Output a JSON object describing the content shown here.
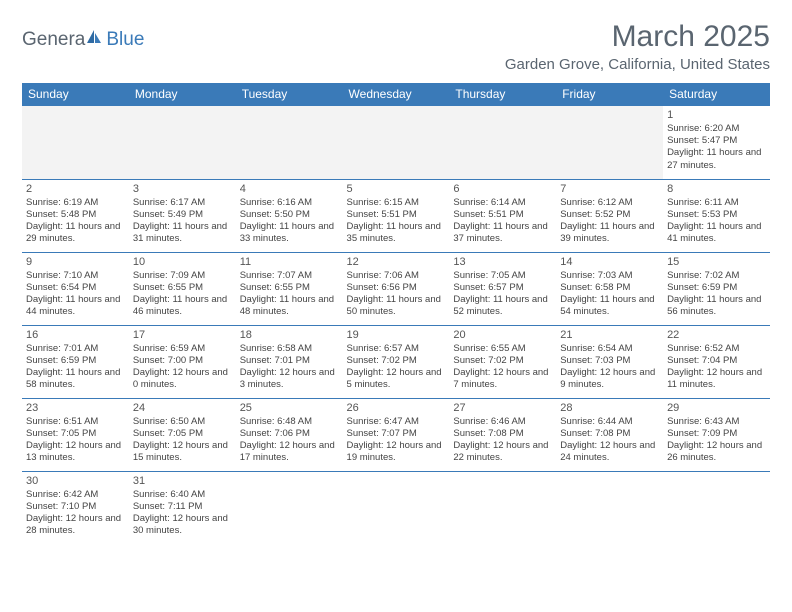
{
  "logo": {
    "part1": "Genera",
    "part2": "Blue"
  },
  "title": "March 2025",
  "location": "Garden Grove, California, United States",
  "colors": {
    "header_bg": "#3a7ab8",
    "header_text": "#ffffff",
    "text": "#444444",
    "title_text": "#5a6570",
    "logo_gray": "#5a6570",
    "logo_blue": "#3a7ab8",
    "cell_border": "#3a7ab8",
    "empty_bg": "#f3f3f3",
    "page_bg": "#ffffff"
  },
  "typography": {
    "title_fontsize": 30,
    "location_fontsize": 15,
    "dayheader_fontsize": 12,
    "daynum_fontsize": 11,
    "detail_fontsize": 9.5
  },
  "day_headers": [
    "Sunday",
    "Monday",
    "Tuesday",
    "Wednesday",
    "Thursday",
    "Friday",
    "Saturday"
  ],
  "weeks": [
    [
      null,
      null,
      null,
      null,
      null,
      null,
      {
        "n": "1",
        "sr": "Sunrise: 6:20 AM",
        "ss": "Sunset: 5:47 PM",
        "dl": "Daylight: 11 hours and 27 minutes."
      }
    ],
    [
      {
        "n": "2",
        "sr": "Sunrise: 6:19 AM",
        "ss": "Sunset: 5:48 PM",
        "dl": "Daylight: 11 hours and 29 minutes."
      },
      {
        "n": "3",
        "sr": "Sunrise: 6:17 AM",
        "ss": "Sunset: 5:49 PM",
        "dl": "Daylight: 11 hours and 31 minutes."
      },
      {
        "n": "4",
        "sr": "Sunrise: 6:16 AM",
        "ss": "Sunset: 5:50 PM",
        "dl": "Daylight: 11 hours and 33 minutes."
      },
      {
        "n": "5",
        "sr": "Sunrise: 6:15 AM",
        "ss": "Sunset: 5:51 PM",
        "dl": "Daylight: 11 hours and 35 minutes."
      },
      {
        "n": "6",
        "sr": "Sunrise: 6:14 AM",
        "ss": "Sunset: 5:51 PM",
        "dl": "Daylight: 11 hours and 37 minutes."
      },
      {
        "n": "7",
        "sr": "Sunrise: 6:12 AM",
        "ss": "Sunset: 5:52 PM",
        "dl": "Daylight: 11 hours and 39 minutes."
      },
      {
        "n": "8",
        "sr": "Sunrise: 6:11 AM",
        "ss": "Sunset: 5:53 PM",
        "dl": "Daylight: 11 hours and 41 minutes."
      }
    ],
    [
      {
        "n": "9",
        "sr": "Sunrise: 7:10 AM",
        "ss": "Sunset: 6:54 PM",
        "dl": "Daylight: 11 hours and 44 minutes."
      },
      {
        "n": "10",
        "sr": "Sunrise: 7:09 AM",
        "ss": "Sunset: 6:55 PM",
        "dl": "Daylight: 11 hours and 46 minutes."
      },
      {
        "n": "11",
        "sr": "Sunrise: 7:07 AM",
        "ss": "Sunset: 6:55 PM",
        "dl": "Daylight: 11 hours and 48 minutes."
      },
      {
        "n": "12",
        "sr": "Sunrise: 7:06 AM",
        "ss": "Sunset: 6:56 PM",
        "dl": "Daylight: 11 hours and 50 minutes."
      },
      {
        "n": "13",
        "sr": "Sunrise: 7:05 AM",
        "ss": "Sunset: 6:57 PM",
        "dl": "Daylight: 11 hours and 52 minutes."
      },
      {
        "n": "14",
        "sr": "Sunrise: 7:03 AM",
        "ss": "Sunset: 6:58 PM",
        "dl": "Daylight: 11 hours and 54 minutes."
      },
      {
        "n": "15",
        "sr": "Sunrise: 7:02 AM",
        "ss": "Sunset: 6:59 PM",
        "dl": "Daylight: 11 hours and 56 minutes."
      }
    ],
    [
      {
        "n": "16",
        "sr": "Sunrise: 7:01 AM",
        "ss": "Sunset: 6:59 PM",
        "dl": "Daylight: 11 hours and 58 minutes."
      },
      {
        "n": "17",
        "sr": "Sunrise: 6:59 AM",
        "ss": "Sunset: 7:00 PM",
        "dl": "Daylight: 12 hours and 0 minutes."
      },
      {
        "n": "18",
        "sr": "Sunrise: 6:58 AM",
        "ss": "Sunset: 7:01 PM",
        "dl": "Daylight: 12 hours and 3 minutes."
      },
      {
        "n": "19",
        "sr": "Sunrise: 6:57 AM",
        "ss": "Sunset: 7:02 PM",
        "dl": "Daylight: 12 hours and 5 minutes."
      },
      {
        "n": "20",
        "sr": "Sunrise: 6:55 AM",
        "ss": "Sunset: 7:02 PM",
        "dl": "Daylight: 12 hours and 7 minutes."
      },
      {
        "n": "21",
        "sr": "Sunrise: 6:54 AM",
        "ss": "Sunset: 7:03 PM",
        "dl": "Daylight: 12 hours and 9 minutes."
      },
      {
        "n": "22",
        "sr": "Sunrise: 6:52 AM",
        "ss": "Sunset: 7:04 PM",
        "dl": "Daylight: 12 hours and 11 minutes."
      }
    ],
    [
      {
        "n": "23",
        "sr": "Sunrise: 6:51 AM",
        "ss": "Sunset: 7:05 PM",
        "dl": "Daylight: 12 hours and 13 minutes."
      },
      {
        "n": "24",
        "sr": "Sunrise: 6:50 AM",
        "ss": "Sunset: 7:05 PM",
        "dl": "Daylight: 12 hours and 15 minutes."
      },
      {
        "n": "25",
        "sr": "Sunrise: 6:48 AM",
        "ss": "Sunset: 7:06 PM",
        "dl": "Daylight: 12 hours and 17 minutes."
      },
      {
        "n": "26",
        "sr": "Sunrise: 6:47 AM",
        "ss": "Sunset: 7:07 PM",
        "dl": "Daylight: 12 hours and 19 minutes."
      },
      {
        "n": "27",
        "sr": "Sunrise: 6:46 AM",
        "ss": "Sunset: 7:08 PM",
        "dl": "Daylight: 12 hours and 22 minutes."
      },
      {
        "n": "28",
        "sr": "Sunrise: 6:44 AM",
        "ss": "Sunset: 7:08 PM",
        "dl": "Daylight: 12 hours and 24 minutes."
      },
      {
        "n": "29",
        "sr": "Sunrise: 6:43 AM",
        "ss": "Sunset: 7:09 PM",
        "dl": "Daylight: 12 hours and 26 minutes."
      }
    ],
    [
      {
        "n": "30",
        "sr": "Sunrise: 6:42 AM",
        "ss": "Sunset: 7:10 PM",
        "dl": "Daylight: 12 hours and 28 minutes."
      },
      {
        "n": "31",
        "sr": "Sunrise: 6:40 AM",
        "ss": "Sunset: 7:11 PM",
        "dl": "Daylight: 12 hours and 30 minutes."
      },
      null,
      null,
      null,
      null,
      null
    ]
  ]
}
